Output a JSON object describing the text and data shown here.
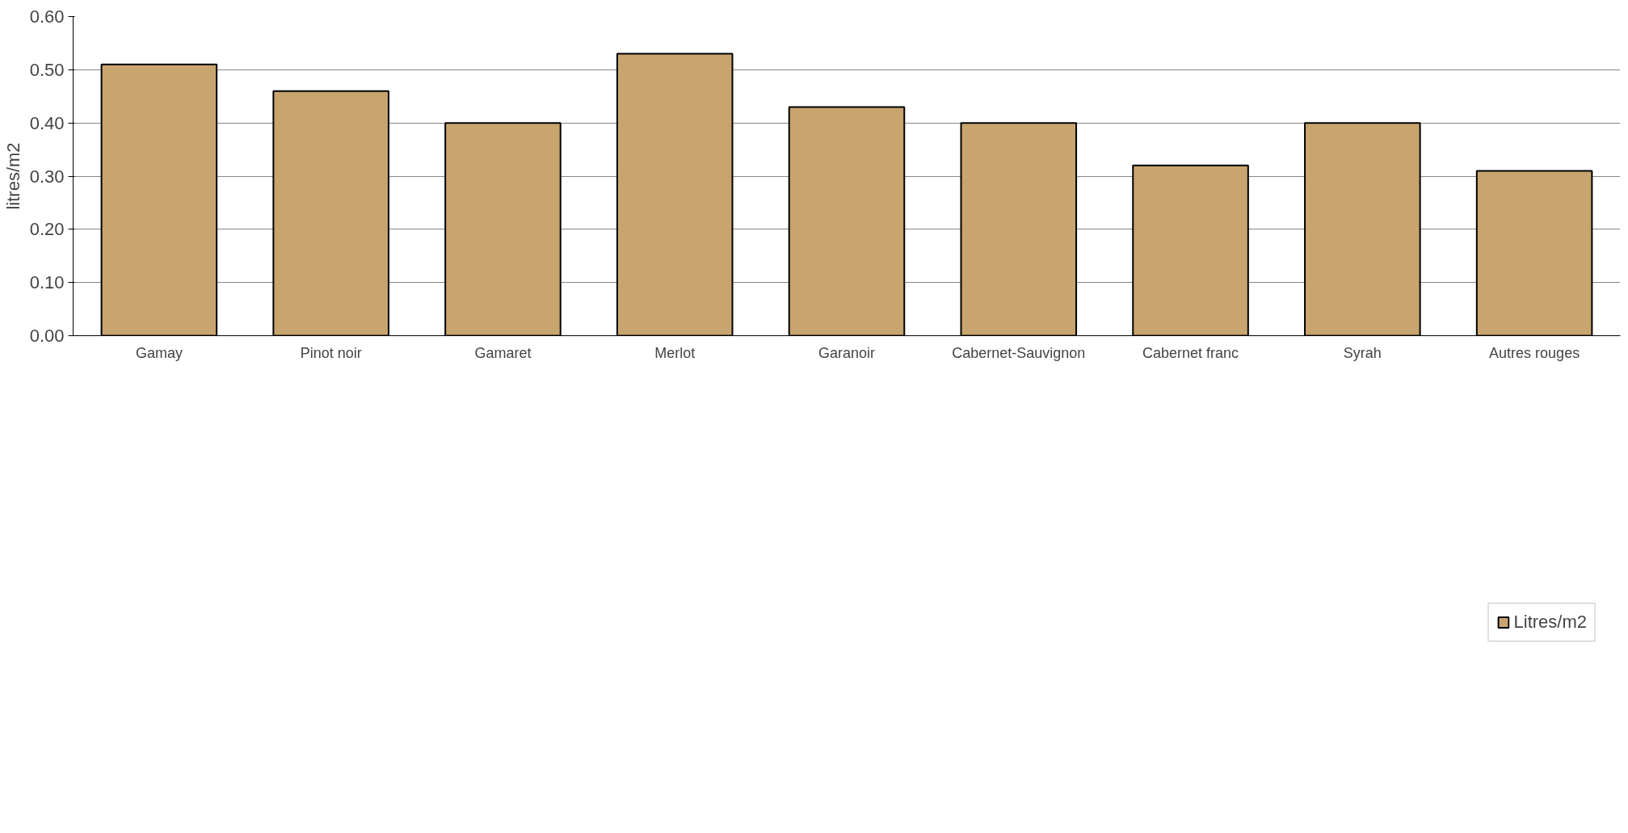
{
  "chart_data": {
    "type": "bar",
    "ylabel": "litres/m2",
    "categories": [
      "Gamay",
      "Pinot noir",
      "Gamaret",
      "Merlot",
      "Garanoir",
      "Cabernet-Sauvignon",
      "Cabernet franc",
      "Syrah",
      "Autres rouges"
    ],
    "series": [
      {
        "name": "Litres/m2",
        "color": "#c8a46e",
        "values": [
          0.51,
          0.46,
          0.4,
          0.53,
          0.43,
          0.4,
          0.32,
          0.4,
          0.31
        ]
      }
    ],
    "ylim": [
      0,
      0.6
    ],
    "yticks": [
      {
        "value": 0,
        "label": "0.00"
      },
      {
        "value": 0.1,
        "label": "0.10"
      },
      {
        "value": 0.2,
        "label": "0.20"
      },
      {
        "value": 0.3,
        "label": "0.30"
      },
      {
        "value": 0.4,
        "label": "0.40"
      },
      {
        "value": 0.5,
        "label": "0.50"
      },
      {
        "value": 0.6,
        "label": "0.60"
      }
    ],
    "grid": "y",
    "legend": "bottom"
  }
}
